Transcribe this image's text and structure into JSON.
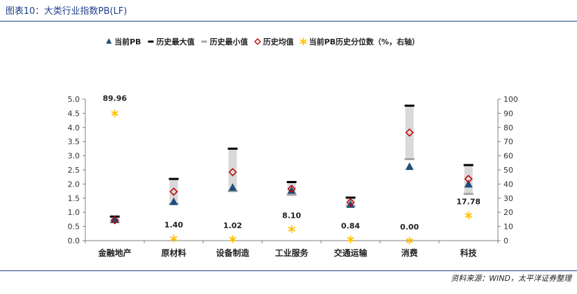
{
  "header": {
    "title": "图表10：大类行业指数PB(LF)"
  },
  "footer": {
    "source": "资料来源：WIND，太平洋证券整理"
  },
  "colors": {
    "range_band": "#d9d9d9",
    "current": "#1f4e79",
    "max": "#000000",
    "min": "#a6a6a6",
    "avg": "#c00000",
    "percentile": "#ffc000",
    "title": "#1f3f8a"
  },
  "chart_data": {
    "type": "bar",
    "categories": [
      "金融地产",
      "原材料",
      "设备制造",
      "工业服务",
      "交通运输",
      "消费",
      "科技"
    ],
    "series": [
      {
        "name": "当前PB",
        "axis": "left",
        "values": [
          0.75,
          1.38,
          1.88,
          1.78,
          1.28,
          2.62,
          2.0
        ]
      },
      {
        "name": "历史最大值",
        "axis": "left",
        "values": [
          0.85,
          2.18,
          3.25,
          2.07,
          1.52,
          4.77,
          2.67
        ]
      },
      {
        "name": "历史最小值",
        "axis": "left",
        "values": [
          0.65,
          1.3,
          1.75,
          1.62,
          1.22,
          2.88,
          1.65
        ]
      },
      {
        "name": "历史均值",
        "axis": "left",
        "values": [
          0.72,
          1.73,
          2.42,
          1.83,
          1.35,
          3.82,
          2.18
        ]
      },
      {
        "name": "当前PB历史分位数（%，右轴）",
        "axis": "right",
        "values": [
          89.96,
          1.4,
          1.02,
          8.1,
          0.84,
          0.0,
          17.78
        ]
      }
    ],
    "data_labels": [
      "89.96",
      "1.40",
      "1.02",
      "8.10",
      "0.84",
      "0.00",
      "17.78"
    ],
    "left_axis": {
      "min": 0,
      "max": 5,
      "step": 0.5,
      "ticks": [
        "0.0",
        "0.5",
        "1.0",
        "1.5",
        "2.0",
        "2.5",
        "3.0",
        "3.5",
        "4.0",
        "4.5",
        "5.0"
      ]
    },
    "right_axis": {
      "min": 0,
      "max": 100,
      "step": 10,
      "ticks": [
        "0",
        "10",
        "20",
        "30",
        "40",
        "50",
        "60",
        "70",
        "80",
        "90",
        "100"
      ]
    },
    "legend_position": "top",
    "grid": false
  }
}
